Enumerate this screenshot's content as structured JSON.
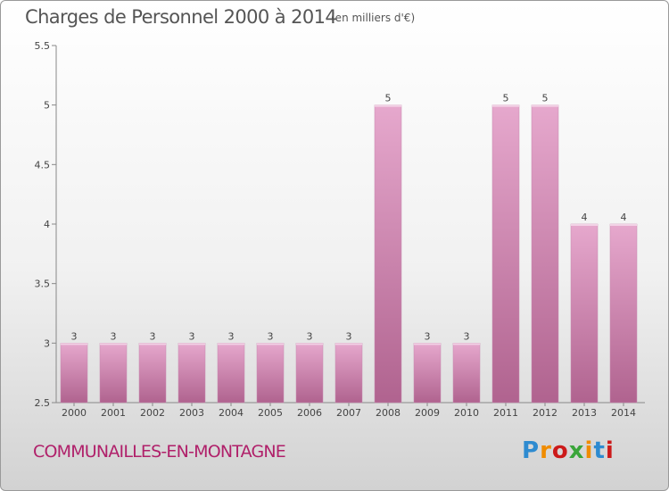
{
  "header": {
    "title": "Charges de Personnel 2000 à 2014",
    "subtitle": "(en milliers d'€)"
  },
  "footer": {
    "commune": "COMMUNAILLES-EN-MONTAGNE",
    "logo": "Proxiti",
    "logo_colors": [
      "#2e8bd0",
      "#f08c00",
      "#cc1a1a",
      "#3aa53a",
      "#f08c00",
      "#2e8bd0",
      "#cc1a1a"
    ]
  },
  "colors": {
    "bar_top": "#e6a8cd",
    "bar_bottom": "#b0638f",
    "axis": "#888888",
    "title": "#555555",
    "commune": "#b0206a"
  },
  "chart_data": {
    "type": "bar",
    "title": "Charges de Personnel 2000 à 2014",
    "subtitle": "(en milliers d'€)",
    "categories": [
      "2000",
      "2001",
      "2002",
      "2003",
      "2004",
      "2005",
      "2006",
      "2007",
      "2008",
      "2009",
      "2010",
      "2011",
      "2012",
      "2013",
      "2014"
    ],
    "values": [
      3,
      3,
      3,
      3,
      3,
      3,
      3,
      3,
      5,
      3,
      3,
      5,
      5,
      4,
      4
    ],
    "data_labels": [
      "3",
      "3",
      "3",
      "3",
      "3",
      "3",
      "3",
      "3",
      "5",
      "3",
      "3",
      "5",
      "5",
      "4",
      "4"
    ],
    "ylim": [
      2.5,
      5.5
    ],
    "yticks": [
      2.5,
      3,
      3.5,
      4,
      4.5,
      5,
      5.5
    ],
    "ytick_labels": [
      "2.5",
      "3",
      "3.5",
      "4",
      "4.5",
      "5",
      "5.5"
    ],
    "grid": false,
    "legend": "none"
  }
}
